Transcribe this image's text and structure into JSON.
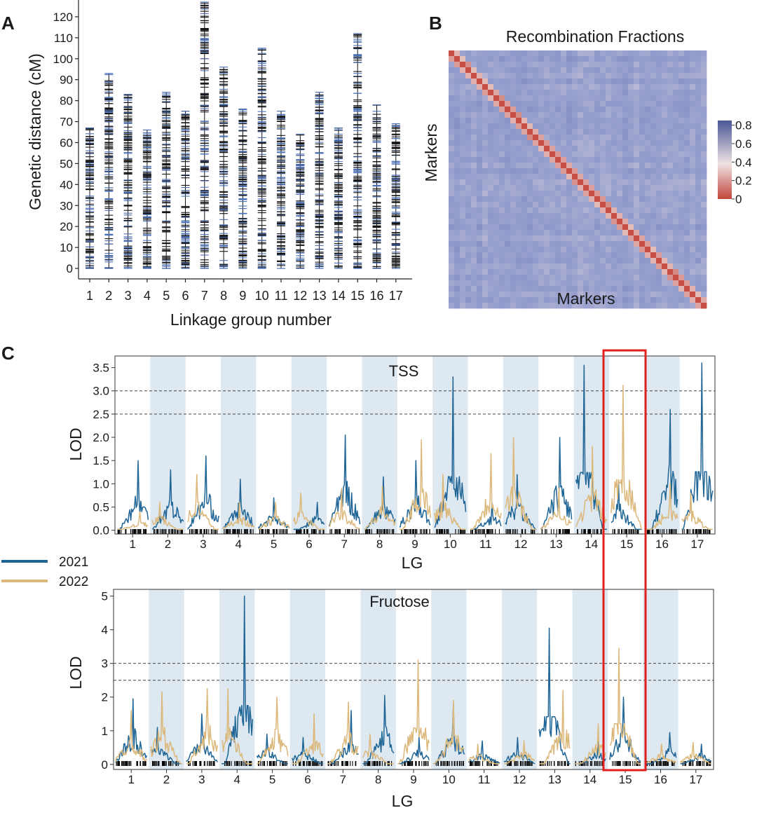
{
  "colors": {
    "y2021": "#1f6596",
    "y2022": "#dcb87a",
    "band": "#dde8f0",
    "highlight": "#e0211d",
    "mapBlack": "#111111",
    "mapBlue": "#4b6fb5",
    "heatLow": "#c2453b",
    "heatMid": "#efe3e3",
    "heatHigh": "#4a5796"
  },
  "chart_data": [
    {
      "panel": "A",
      "type": "genetic-map",
      "ylabel": "Genetic distance (cM)",
      "xlabel": "Linkage group number",
      "ylim": [
        -5,
        128
      ],
      "yticks": [
        "0",
        "10",
        "20",
        "30",
        "40",
        "50",
        "60",
        "70",
        "80",
        "90",
        "100",
        "110",
        "120"
      ],
      "groups": [
        "1",
        "2",
        "3",
        "4",
        "5",
        "6",
        "7",
        "8",
        "9",
        "10",
        "11",
        "12",
        "13",
        "14",
        "15",
        "16",
        "17"
      ],
      "lengths": [
        67,
        93,
        83,
        66,
        84,
        75,
        127,
        96,
        76,
        105,
        75,
        64,
        84,
        67,
        112,
        78,
        69
      ]
    },
    {
      "panel": "B",
      "type": "heatmap",
      "title": "Recombination Fractions",
      "xlabel": "Markers",
      "ylabel": "Markers",
      "colorbar_ticks": [
        "0",
        "0.2",
        "0.4",
        "0.6",
        "0.8"
      ],
      "colorbar_range": [
        0,
        0.85
      ]
    },
    {
      "panel": "C",
      "type": "line",
      "title": "TSS",
      "xlabel": "LG",
      "ylabel": "LOD",
      "ylim": [
        -0.08,
        3.75
      ],
      "yticks": [
        "0.0",
        "0.5",
        "1.0",
        "1.5",
        "2.0",
        "2.5",
        "3.0",
        "3.5"
      ],
      "thresholds": [
        2.5,
        3.0
      ],
      "lg_labels": [
        "1",
        "2",
        "3",
        "4",
        "5",
        "6",
        "7",
        "8",
        "9",
        "10",
        "11",
        "12",
        "13",
        "14",
        "15",
        "16",
        "17"
      ],
      "series": [
        {
          "name": "2021",
          "peaks": [
            1.5,
            1.3,
            1.6,
            1.1,
            0.7,
            0.6,
            2.05,
            1.15,
            1.5,
            3.3,
            0.6,
            1.2,
            2.0,
            3.55,
            1.05,
            2.6,
            3.6
          ]
        },
        {
          "name": "2022",
          "peaks": [
            0.4,
            0.6,
            1.2,
            0.6,
            0.6,
            0.8,
            0.9,
            0.95,
            1.95,
            1.2,
            1.65,
            2.0,
            0.9,
            1.8,
            3.12,
            1.0,
            0.8
          ]
        }
      ]
    },
    {
      "panel": "C",
      "type": "line",
      "title": "Fructose",
      "xlabel": "LG",
      "ylabel": "LOD",
      "ylim": [
        -0.15,
        5.2
      ],
      "yticks": [
        "0",
        "1",
        "2",
        "3",
        "4",
        "5"
      ],
      "thresholds": [
        2.5,
        3.0
      ],
      "lg_labels": [
        "1",
        "2",
        "3",
        "4",
        "5",
        "6",
        "7",
        "8",
        "9",
        "10",
        "11",
        "12",
        "13",
        "14",
        "15",
        "16",
        "17"
      ],
      "series": [
        {
          "name": "2021",
          "peaks": [
            1.95,
            1.1,
            1.5,
            5.0,
            0.9,
            0.8,
            1.6,
            2.05,
            0.8,
            1.8,
            0.7,
            0.8,
            4.05,
            0.7,
            2.0,
            0.95,
            0.6
          ]
        },
        {
          "name": "2022",
          "peaks": [
            1.6,
            2.15,
            2.25,
            2.25,
            2.0,
            1.5,
            1.85,
            0.9,
            3.1,
            1.9,
            0.6,
            0.7,
            2.2,
            1.2,
            3.45,
            0.6,
            0.65
          ]
        }
      ]
    }
  ],
  "labels": {
    "panelA": "A",
    "panelB": "B",
    "panelC": "C",
    "legend2021": "2021",
    "legend2022": "2022"
  }
}
